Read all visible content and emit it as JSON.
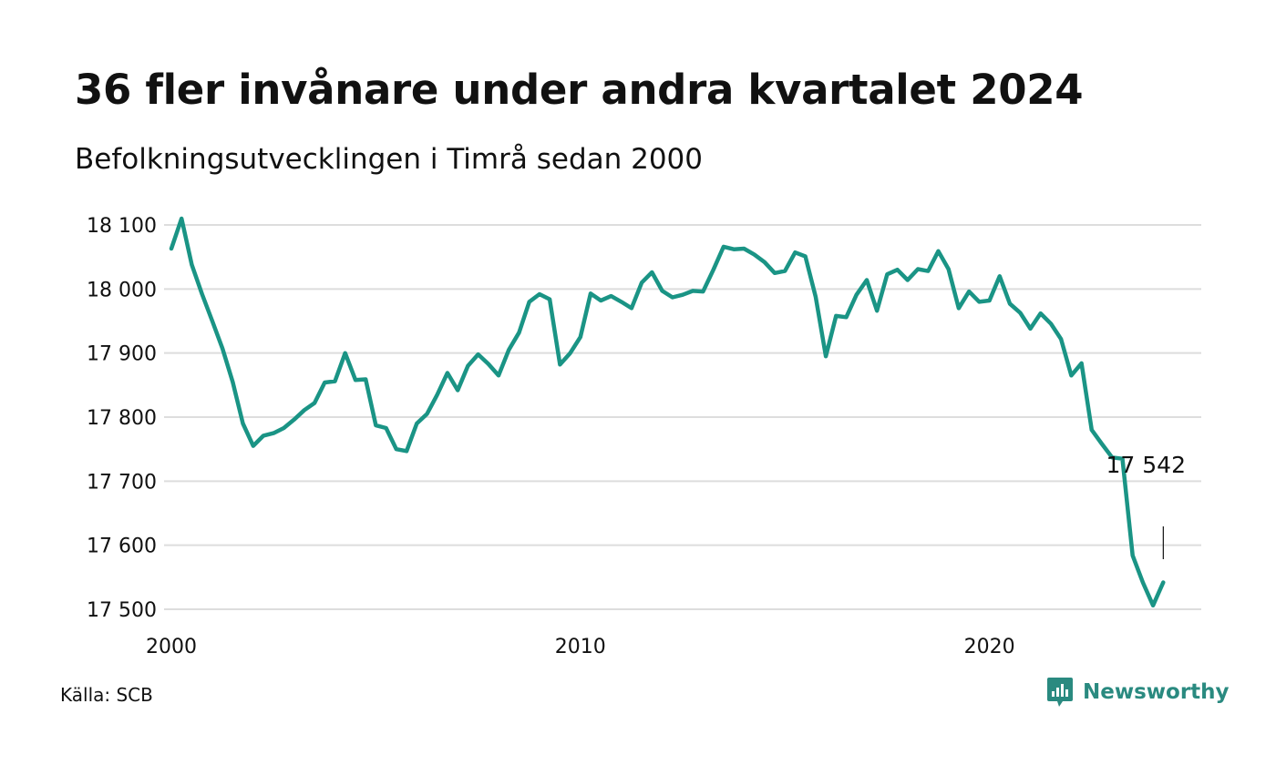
{
  "title": "36 fler invånare under andra kvartalet 2024",
  "subtitle": "Befolkningsutvecklingen i Timrå sedan 2000",
  "source": "Källa: SCB",
  "brand": {
    "name": "Newsworthy",
    "icon": "newsworthy-logo-icon",
    "color": "#2a8a80"
  },
  "colors": {
    "line": "#1a9485",
    "grid": "#dddddd",
    "text": "#111111"
  },
  "chart_data": {
    "type": "line",
    "title": "36 fler invånare under andra kvartalet 2024",
    "subtitle": "Befolkningsutvecklingen i Timrå sedan 2000",
    "xlabel": "",
    "ylabel": "",
    "xlim": [
      2000.0,
      2025.0
    ],
    "ylim": [
      17500,
      18100
    ],
    "grid": true,
    "x_ticks": [
      2000,
      2010,
      2020
    ],
    "x_tick_labels": [
      "2000",
      "2010",
      "2020"
    ],
    "y_ticks": [
      17500,
      17600,
      17700,
      17800,
      17900,
      18000,
      18100
    ],
    "y_tick_labels": [
      "17 500",
      "17 600",
      "17 700",
      "17 800",
      "17 900",
      "18 000",
      "18 100"
    ],
    "annotation": {
      "text": "17 542",
      "x": 2024.25,
      "y": 17542
    },
    "series": [
      {
        "x": [
          2000.0,
          2000.25,
          2000.5,
          2000.75,
          2001.0,
          2001.25,
          2001.5,
          2001.75,
          2002.0,
          2002.25,
          2002.5,
          2002.75,
          2003.0,
          2003.25,
          2003.5,
          2003.75,
          2004.0,
          2004.25,
          2004.5,
          2004.75,
          2005.0,
          2005.25,
          2005.5,
          2005.75,
          2006.0,
          2006.25,
          2006.5,
          2006.75,
          2007.0,
          2007.25,
          2007.5,
          2007.75,
          2008.0,
          2008.25,
          2008.5,
          2008.75,
          2009.0,
          2009.25,
          2009.5,
          2009.75,
          2010.0,
          2010.25,
          2010.5,
          2010.75,
          2011.0,
          2011.25,
          2011.5,
          2011.75,
          2012.0,
          2012.25,
          2012.5,
          2012.75,
          2013.0,
          2013.25,
          2013.5,
          2013.75,
          2014.0,
          2014.25,
          2014.5,
          2014.75,
          2015.0,
          2015.25,
          2015.5,
          2015.75,
          2016.0,
          2016.25,
          2016.5,
          2016.75,
          2017.0,
          2017.25,
          2017.5,
          2017.75,
          2018.0,
          2018.25,
          2018.5,
          2018.75,
          2019.0,
          2019.25,
          2019.5,
          2019.75,
          2020.0,
          2020.25,
          2020.5,
          2020.75,
          2021.0,
          2021.25,
          2021.5,
          2021.75,
          2022.0,
          2022.25,
          2022.5,
          2022.75,
          2023.0,
          2023.25,
          2023.5,
          2023.75,
          2024.0,
          2024.25
        ],
        "values": [
          18063,
          18110,
          18038,
          17992,
          17950,
          17907,
          17855,
          17790,
          17755,
          17771,
          17775,
          17783,
          17796,
          17811,
          17822,
          17854,
          17856,
          17900,
          17858,
          17859,
          17787,
          17783,
          17750,
          17747,
          17790,
          17805,
          17835,
          17869,
          17842,
          17880,
          17898,
          17883,
          17865,
          17905,
          17932,
          17980,
          17992,
          17984,
          17882,
          17900,
          17925,
          17993,
          17982,
          17989,
          17980,
          17970,
          18010,
          18026,
          17997,
          17987,
          17991,
          17997,
          17996,
          18030,
          18066,
          18062,
          18063,
          18054,
          18042,
          18025,
          18028,
          18057,
          18051,
          17988,
          17895,
          17958,
          17956,
          17991,
          18014,
          17966,
          18023,
          18030,
          18014,
          18031,
          18028,
          18059,
          18031,
          17970,
          17996,
          17980,
          17982,
          18020,
          17977,
          17963,
          17938,
          17962,
          17946,
          17922,
          17865,
          17884,
          17780,
          17758,
          17737,
          17735,
          17584,
          17542,
          17506,
          17542
        ]
      }
    ]
  }
}
